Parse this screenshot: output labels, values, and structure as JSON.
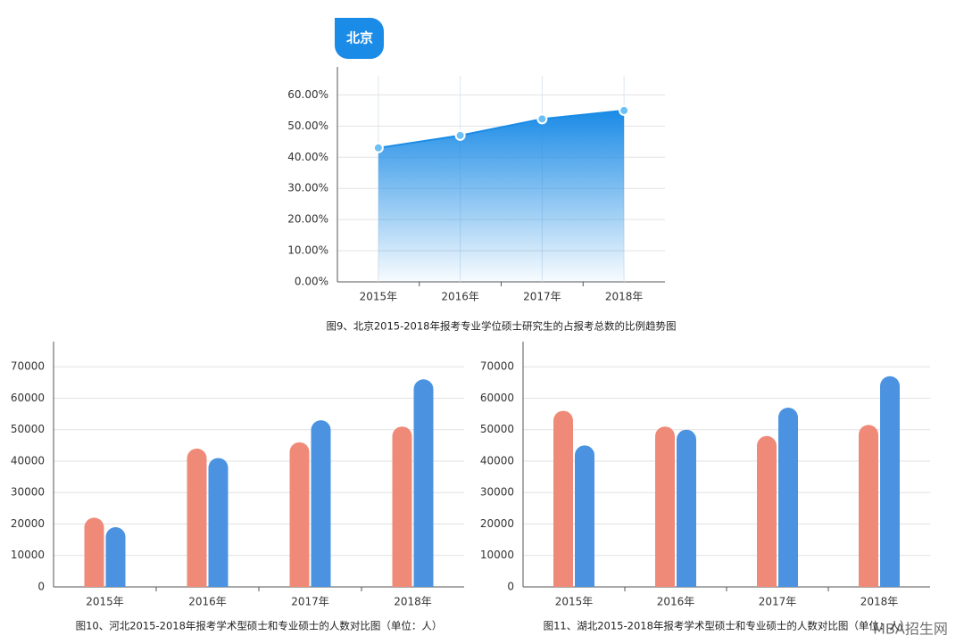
{
  "chart_data": [
    {
      "type": "area",
      "badge": "北京",
      "title": "图9、北京2015-2018年报考专业学位硕士研究生的占报考总数的比例趋势图",
      "categories": [
        "2015年",
        "2016年",
        "2017年",
        "2018年"
      ],
      "values": [
        43,
        47,
        52.3,
        55
      ],
      "color": "#1a8be6",
      "ylim": [
        0,
        69
      ],
      "yticks": [
        {
          "value": 0,
          "label": "0.00%"
        },
        {
          "value": 10,
          "label": "10.00%"
        },
        {
          "value": 20,
          "label": "20.00%"
        },
        {
          "value": 30,
          "label": "30.00%"
        },
        {
          "value": 40,
          "label": "40.00%"
        },
        {
          "value": 50,
          "label": "50.00%"
        },
        {
          "value": 60,
          "label": "60.00%"
        }
      ],
      "grid": true
    },
    {
      "type": "bar",
      "title": "图10、河北2015-2018年报考学术型硕士和专业硕士的人数对比图（单位：人）",
      "categories": [
        "2015年",
        "2016年",
        "2017年",
        "2018年"
      ],
      "series": [
        {
          "color": "#f08a78",
          "values": [
            22000,
            44000,
            46000,
            51000
          ]
        },
        {
          "color": "#4b93e0",
          "values": [
            19000,
            41000,
            53000,
            66000
          ]
        }
      ],
      "ylim": [
        0,
        78000
      ],
      "yticks": [
        0,
        10000,
        20000,
        30000,
        40000,
        50000,
        60000,
        70000
      ],
      "grid": true
    },
    {
      "type": "bar",
      "title": "图11、湖北2015-2018年报考学术型硕士和专业硕士的人数对比图（单位：人）",
      "categories": [
        "2015年",
        "2016年",
        "2017年",
        "2018年"
      ],
      "series": [
        {
          "color": "#f08a78",
          "values": [
            56000,
            51000,
            48000,
            51500
          ]
        },
        {
          "color": "#4b93e0",
          "values": [
            45000,
            50000,
            57000,
            67000
          ]
        }
      ],
      "ylim": [
        0,
        78000
      ],
      "yticks": [
        0,
        10000,
        20000,
        30000,
        40000,
        50000,
        60000,
        70000
      ],
      "grid": true
    }
  ],
  "watermark": "MBA招生网"
}
